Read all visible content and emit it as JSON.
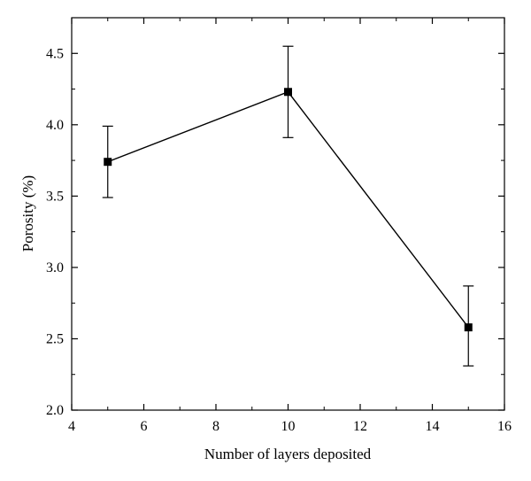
{
  "chart_data": {
    "type": "line",
    "title": "",
    "xlabel": "Number of layers deposited",
    "ylabel": "Porosity (%)",
    "xlim": [
      4,
      16
    ],
    "ylim": [
      2.0,
      4.75
    ],
    "xticks": [
      4,
      6,
      8,
      10,
      12,
      14,
      16
    ],
    "yticks": [
      2.0,
      2.5,
      3.0,
      3.5,
      4.0,
      4.5
    ],
    "ytick_labels": [
      "2.0",
      "2.5",
      "3.0",
      "3.5",
      "4.0",
      "4.5"
    ],
    "grid": false,
    "legend": "none",
    "series": [
      {
        "marker": "square",
        "color": "#000000",
        "x": [
          5,
          10,
          15
        ],
        "y": [
          3.74,
          4.23,
          2.58
        ],
        "err_low": [
          3.49,
          3.91,
          2.31
        ],
        "err_high": [
          3.99,
          4.55,
          2.87
        ]
      }
    ]
  }
}
